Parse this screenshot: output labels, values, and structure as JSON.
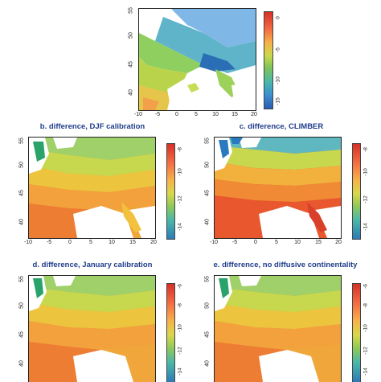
{
  "panels": [
    {
      "id": "a",
      "title": "",
      "x_ticks": [
        "-10",
        "-5",
        "0",
        "5",
        "10",
        "15",
        "20"
      ],
      "y_ticks": [
        "55",
        "50",
        "45",
        "40"
      ],
      "colorbar_ticks": [
        "0",
        "-5",
        "-10",
        "-15"
      ],
      "color_scheme": "absolute"
    },
    {
      "id": "b",
      "title": "b. difference, DJF calibration",
      "x_ticks": [
        "-10",
        "-5",
        "0",
        "5",
        "10",
        "15",
        "20"
      ],
      "y_ticks": [
        "55",
        "50",
        "45",
        "40"
      ],
      "colorbar_ticks": [
        "-8",
        "-10",
        "-12",
        "-14"
      ],
      "color_scheme": "difference"
    },
    {
      "id": "c",
      "title": "c. difference, CLIMBER",
      "x_ticks": [
        "-10",
        "-5",
        "0",
        "5",
        "10",
        "15",
        "20"
      ],
      "y_ticks": [
        "55",
        "50",
        "45",
        "40"
      ],
      "colorbar_ticks": [
        "-8",
        "-10",
        "-12",
        "-14"
      ],
      "color_scheme": "difference_warm"
    },
    {
      "id": "d",
      "title": "d. difference, January calibration",
      "x_ticks": [],
      "y_ticks": [
        "55",
        "50",
        "45",
        "40"
      ],
      "colorbar_ticks": [
        "-6",
        "-8",
        "-10",
        "-12",
        "-14"
      ],
      "color_scheme": "difference"
    },
    {
      "id": "e",
      "title": "e. difference, no diffusive continentality",
      "x_ticks": [],
      "y_ticks": [
        "55",
        "50",
        "45",
        "40"
      ],
      "colorbar_ticks": [
        "-6",
        "-8",
        "-10",
        "-12",
        "-14"
      ],
      "color_scheme": "difference"
    }
  ],
  "colors": {
    "title_blue": "#1f3d8c",
    "cbar_top": "#d73027",
    "cbar_orange": "#f46d43",
    "cbar_yellow": "#e8c93a",
    "cbar_green": "#6cbf4a",
    "cbar_teal": "#4bb8a8",
    "cbar_blue": "#2c7bb6"
  }
}
